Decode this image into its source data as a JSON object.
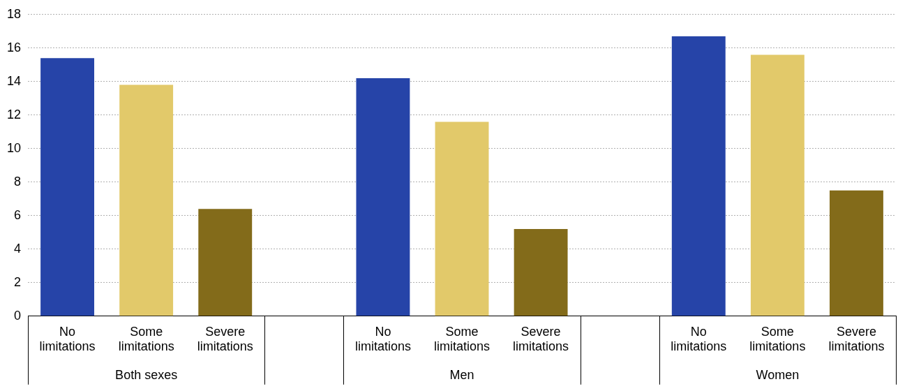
{
  "chart_data": {
    "type": "bar",
    "categories": [
      "No limitations",
      "Some limitations",
      "Severe limitations",
      null,
      "No limitations",
      "Some limitations",
      "Severe limitations",
      null,
      "No limitations",
      "Some limitations",
      "Severe limitations"
    ],
    "values": [
      15.4,
      13.8,
      6.4,
      null,
      14.2,
      11.6,
      5.2,
      null,
      16.7,
      15.6,
      7.5
    ],
    "colors": [
      "#2644a8",
      "#e2c96a",
      "#836b1a",
      null,
      "#2644a8",
      "#e2c96a",
      "#836b1a",
      null,
      "#2644a8",
      "#e2c96a",
      "#836b1a"
    ],
    "annotations": [
      "Both sexes",
      "Men",
      "Women"
    ],
    "ylim": [
      0,
      18
    ],
    "yticks": [
      0,
      2,
      4,
      6,
      8,
      10,
      12,
      14,
      16,
      18
    ],
    "grid": "y",
    "legend": false
  }
}
